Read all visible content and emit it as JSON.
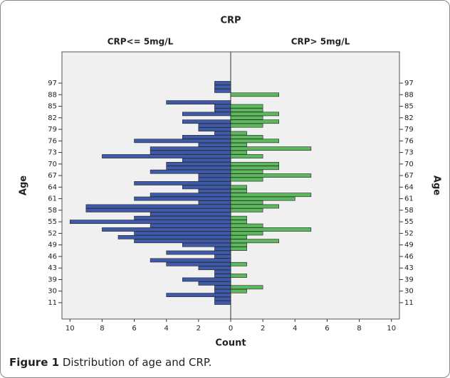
{
  "chart_data": {
    "type": "pyramid",
    "title": "CRP",
    "xlabel": "Count",
    "ylabel": "Age",
    "categories": [
      97,
      null,
      null,
      88,
      null,
      null,
      85,
      null,
      null,
      82,
      null,
      null,
      79,
      null,
      null,
      76,
      null,
      null,
      73,
      null,
      null,
      70,
      null,
      null,
      67,
      null,
      null,
      64,
      null,
      null,
      61,
      null,
      null,
      58,
      null,
      null,
      55,
      null,
      null,
      52,
      null,
      null,
      49,
      null,
      null,
      46,
      null,
      null,
      43,
      null,
      null,
      39,
      null,
      null,
      30,
      null,
      null,
      11
    ],
    "series": [
      {
        "name": "CRP<= 5mg/L",
        "color": "#3f5aa8",
        "values": [
          1,
          1,
          1,
          0,
          0,
          4,
          1,
          1,
          3,
          0,
          3,
          2,
          2,
          1,
          3,
          6,
          2,
          5,
          5,
          8,
          3,
          4,
          4,
          5,
          2,
          2,
          6,
          3,
          2,
          5,
          6,
          2,
          9,
          9,
          5,
          6,
          10,
          5,
          8,
          6,
          7,
          6,
          3,
          1,
          4,
          1,
          5,
          4,
          2,
          1,
          1,
          3,
          2,
          1,
          1,
          4,
          1,
          1
        ]
      },
      {
        "name": "CRP> 5mg/L",
        "color": "#5cb85c",
        "values": [
          0,
          0,
          0,
          3,
          0,
          0,
          2,
          2,
          3,
          2,
          3,
          2,
          0,
          1,
          2,
          3,
          1,
          5,
          1,
          2,
          0,
          3,
          3,
          2,
          5,
          2,
          0,
          1,
          1,
          5,
          4,
          2,
          3,
          2,
          0,
          1,
          1,
          2,
          5,
          2,
          1,
          3,
          1,
          1,
          0,
          0,
          0,
          1,
          0,
          0,
          1,
          0,
          0,
          2,
          1,
          0,
          0,
          0
        ]
      }
    ],
    "xlim": [
      0,
      10.5
    ],
    "xticks": [
      0,
      2,
      4,
      6,
      8,
      10
    ]
  },
  "caption": {
    "label": "Figure 1",
    "text": "Distribution of age and CRP."
  }
}
